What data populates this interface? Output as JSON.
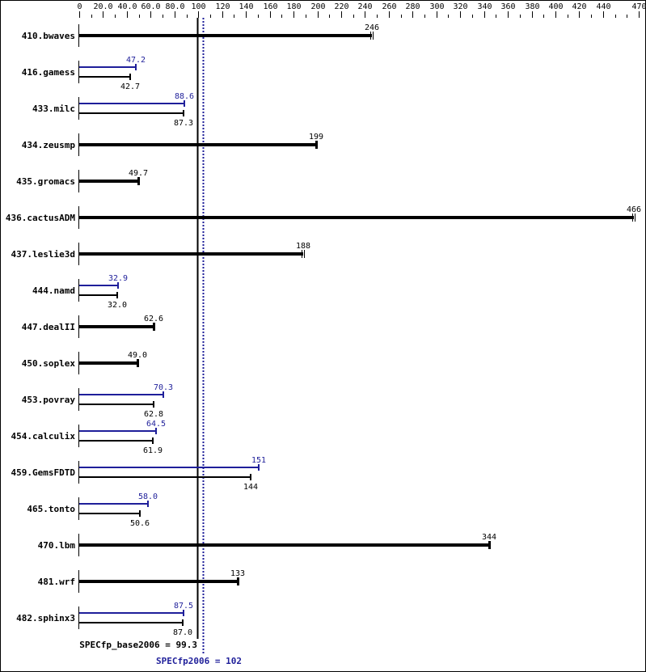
{
  "chart_data": {
    "type": "bar",
    "orientation": "horizontal",
    "title": "",
    "xlabel": "",
    "ylabel": "",
    "xlim": [
      0,
      470
    ],
    "x_ticks": [
      "0",
      "20.0",
      "40.0",
      "60.0",
      "80.0",
      "100",
      "120",
      "140",
      "160",
      "180",
      "200",
      "220",
      "240",
      "260",
      "280",
      "300",
      "320",
      "340",
      "360",
      "380",
      "400",
      "420",
      "440",
      "470"
    ],
    "categories": [
      "410.bwaves",
      "416.gamess",
      "433.milc",
      "434.zeusmp",
      "435.gromacs",
      "436.cactusADM",
      "437.leslie3d",
      "444.namd",
      "447.dealII",
      "450.soplex",
      "453.povray",
      "454.calculix",
      "459.GemsFDTD",
      "465.tonto",
      "470.lbm",
      "481.wrf",
      "482.sphinx3"
    ],
    "series": [
      {
        "name": "SPECfp_base2006",
        "color": "#000000",
        "values": [
          246,
          42.7,
          87.3,
          199,
          49.7,
          466,
          188,
          32.0,
          62.6,
          49.0,
          62.8,
          61.9,
          144,
          50.6,
          344,
          133,
          87.0
        ]
      },
      {
        "name": "SPECfp2006",
        "color": "#1f1f9a",
        "values": [
          246,
          47.2,
          88.6,
          199,
          49.7,
          466,
          188,
          32.9,
          62.6,
          49.0,
          70.3,
          64.5,
          151,
          58.0,
          344,
          133,
          87.5
        ]
      }
    ],
    "labels": {
      "base": [
        "246",
        "42.7",
        "87.3",
        "199",
        "49.7",
        "466",
        "188",
        "32.0",
        "62.6",
        "49.0",
        "62.8",
        "61.9",
        "144",
        "50.6",
        "344",
        "133",
        "87.0"
      ],
      "peak": [
        "",
        "47.2",
        "88.6",
        "",
        "",
        "",
        "",
        "32.9",
        "",
        "",
        "70.3",
        "64.5",
        "151",
        "58.0",
        "",
        "",
        "87.5"
      ]
    },
    "combined": [
      true,
      false,
      false,
      true,
      true,
      true,
      true,
      false,
      true,
      true,
      false,
      false,
      false,
      false,
      true,
      true,
      false
    ],
    "double_cap": [
      true,
      false,
      false,
      false,
      false,
      true,
      true,
      false,
      false,
      false,
      false,
      false,
      false,
      false,
      false,
      false,
      false
    ],
    "reference_lines": [
      {
        "name": "SPECfp_base2006",
        "value": 99.3,
        "style": "solid",
        "color": "#000000"
      },
      {
        "name": "SPECfp2006",
        "value": 102,
        "style": "dotted",
        "color": "#1f1f9a"
      }
    ],
    "grid": false
  },
  "summary": {
    "base_label": "SPECfp_base2006 = 99.3",
    "peak_label": "SPECfp2006 = 102"
  }
}
